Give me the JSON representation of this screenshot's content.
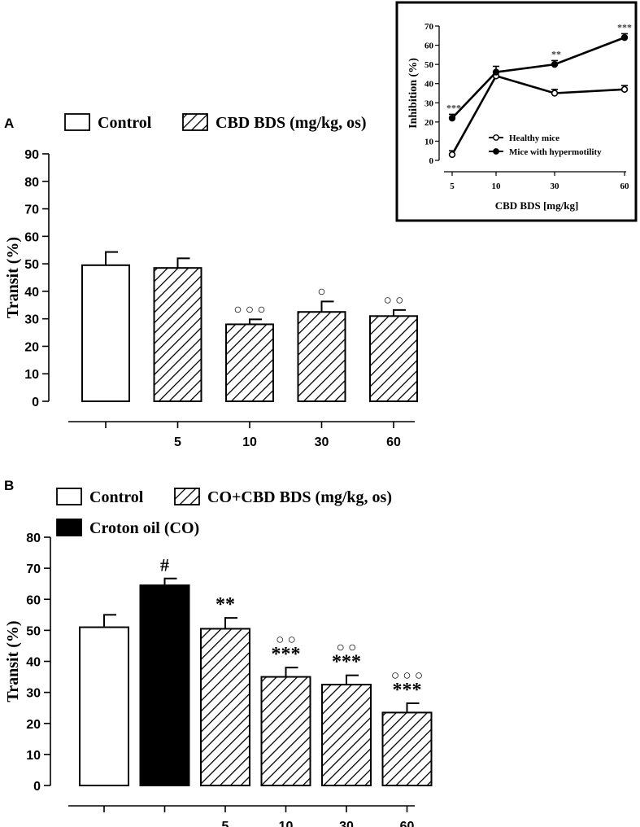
{
  "chart_data": [
    {
      "panel_label": "A",
      "type": "bar",
      "ylabel": "Transit (%)",
      "ylim": [
        0,
        90
      ],
      "yticks": [
        "0",
        "10",
        "20",
        "30",
        "40",
        "50",
        "60",
        "70",
        "80",
        "90"
      ],
      "legend": [
        {
          "label": "Control",
          "pattern": "open"
        },
        {
          "label": "CBD BDS (mg/kg, os)",
          "pattern": "hatched"
        }
      ],
      "categories": [
        "",
        "5",
        "10",
        "30",
        "60"
      ],
      "bars": [
        {
          "value": 49.5,
          "err": 4.8,
          "pattern": "open",
          "sig": ""
        },
        {
          "value": 48.5,
          "err": 3.5,
          "pattern": "hatched",
          "sig": ""
        },
        {
          "value": 28.0,
          "err": 1.8,
          "pattern": "hatched",
          "sig": "ooo"
        },
        {
          "value": 32.5,
          "err": 3.8,
          "pattern": "hatched",
          "sig": "o"
        },
        {
          "value": 31.0,
          "err": 2.2,
          "pattern": "hatched",
          "sig": "oo"
        }
      ]
    },
    {
      "type": "line",
      "inset": true,
      "ylabel": "Inhibition (%)",
      "xlabel": "CBD BDS [mg/kg]",
      "ylim": [
        0,
        70
      ],
      "yticks": [
        "0",
        "10",
        "20",
        "30",
        "40",
        "50",
        "60",
        "70"
      ],
      "x": [
        "5",
        "10",
        "30",
        "60"
      ],
      "series": [
        {
          "name": "Healthy mice",
          "marker": "open",
          "values": [
            3,
            44,
            35,
            37
          ],
          "err": [
            2,
            2,
            2,
            2
          ],
          "sig": [
            "",
            "",
            "",
            ""
          ]
        },
        {
          "name": "Mice with hypermotility",
          "marker": "filled",
          "values": [
            22,
            46,
            50,
            64
          ],
          "err": [
            2,
            3,
            2,
            2
          ],
          "sig": [
            "***",
            "",
            "**",
            "***"
          ]
        }
      ]
    },
    {
      "panel_label": "B",
      "type": "bar",
      "ylabel": "Transit (%)",
      "ylim": [
        0,
        80
      ],
      "yticks": [
        "0",
        "10",
        "20",
        "30",
        "40",
        "50",
        "60",
        "70",
        "80"
      ],
      "legend": [
        {
          "label": "Control",
          "pattern": "open"
        },
        {
          "label": "CO+CBD BDS (mg/kg, os)",
          "pattern": "hatched"
        },
        {
          "label": "Croton oil (CO)",
          "pattern": "filled"
        }
      ],
      "categories": [
        "",
        "",
        "5",
        "10",
        "30",
        "60"
      ],
      "bars": [
        {
          "value": 51.0,
          "err": 4.0,
          "pattern": "open",
          "sig": "",
          "sig2": ""
        },
        {
          "value": 64.5,
          "err": 2.2,
          "pattern": "filled",
          "sig": "",
          "sig2": "#"
        },
        {
          "value": 50.5,
          "err": 3.5,
          "pattern": "hatched",
          "sig": "",
          "sig2": "**"
        },
        {
          "value": 35.0,
          "err": 3.0,
          "pattern": "hatched",
          "sig": "oo",
          "sig2": "***"
        },
        {
          "value": 32.5,
          "err": 3.0,
          "pattern": "hatched",
          "sig": "oo",
          "sig2": "***"
        },
        {
          "value": 23.5,
          "err": 3.0,
          "pattern": "hatched",
          "sig": "ooo",
          "sig2": "***"
        }
      ]
    }
  ]
}
